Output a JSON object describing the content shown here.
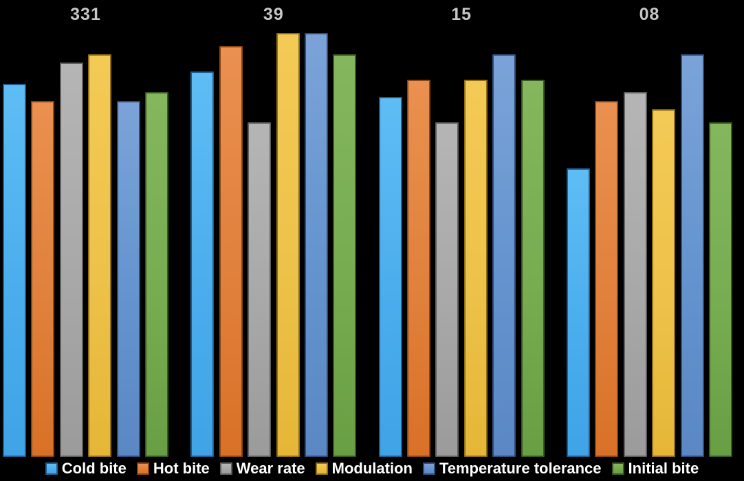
{
  "chart_data": {
    "type": "bar",
    "title": "",
    "xlabel": "",
    "ylabel": "",
    "ylim": [
      0,
      10
    ],
    "grid": false,
    "legend_position": "bottom",
    "background_color": "#000000",
    "category_label_color": "#c7c7c7",
    "legend_text_color": "#ffffff",
    "categories": [
      "331",
      "39",
      "15",
      "08"
    ],
    "series": [
      {
        "name": "Cold bite",
        "values": [
          8.8,
          9.1,
          8.5,
          6.8
        ],
        "color": "#4badec",
        "color_light": "#5ebdf5",
        "color_dark": "#3fa3e6",
        "border_color": "#1d5d8f"
      },
      {
        "name": "Hot bite",
        "values": [
          8.4,
          9.7,
          8.9,
          8.4
        ],
        "color": "#e0813c",
        "color_light": "#ea9050",
        "color_dark": "#d97127",
        "border_color": "#8a4513"
      },
      {
        "name": "Wear rate",
        "values": [
          9.3,
          7.9,
          7.9,
          8.6
        ],
        "color": "#a8a8a8",
        "color_light": "#b5b5b5",
        "color_dark": "#9b9b9b",
        "border_color": "#5f5f5f"
      },
      {
        "name": "Modulation",
        "values": [
          9.5,
          10.0,
          8.9,
          8.2
        ],
        "color": "#edc24a",
        "color_light": "#f3ca55",
        "color_dark": "#e5b637",
        "border_color": "#8f6e14"
      },
      {
        "name": "Temperature tolerance",
        "values": [
          8.4,
          10.0,
          9.5,
          9.5
        ],
        "color": "#6493ce",
        "color_light": "#7ba3d8",
        "color_dark": "#5b88c4",
        "border_color": "#2d4d7e"
      },
      {
        "name": "Initial bite",
        "values": [
          8.6,
          9.5,
          8.9,
          7.9
        ],
        "color": "#77ac51",
        "color_light": "#84b65e",
        "color_dark": "#699f44",
        "border_color": "#39581f"
      }
    ]
  }
}
